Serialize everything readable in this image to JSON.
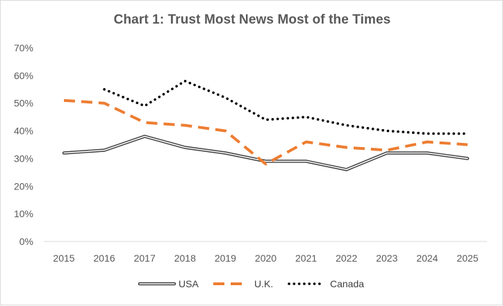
{
  "chart_data": {
    "type": "line",
    "title": "Chart 1: Trust Most News Most of the Times",
    "xlabel": "",
    "ylabel": "",
    "categories": [
      "2015",
      "2016",
      "2017",
      "2018",
      "2019",
      "2020",
      "2021",
      "2022",
      "2023",
      "2024",
      "2025"
    ],
    "y_ticks": [
      "0%",
      "10%",
      "20%",
      "30%",
      "40%",
      "50%",
      "60%",
      "70%"
    ],
    "ylim": [
      0,
      70
    ],
    "grid": false,
    "legend_position": "bottom",
    "series": [
      {
        "name": "USA",
        "style": "double",
        "color": "#404040",
        "values": [
          32,
          33,
          38,
          34,
          32,
          29,
          29,
          26,
          32,
          32,
          30
        ]
      },
      {
        "name": "U.K.",
        "style": "dashed",
        "color": "#ed7d31",
        "values": [
          51,
          50,
          43,
          42,
          40,
          28,
          36,
          34,
          33,
          36,
          35
        ]
      },
      {
        "name": "Canada",
        "style": "dotted",
        "color": "#000000",
        "values": [
          null,
          55,
          49,
          58,
          52,
          44,
          45,
          42,
          40,
          39,
          39
        ]
      }
    ]
  }
}
